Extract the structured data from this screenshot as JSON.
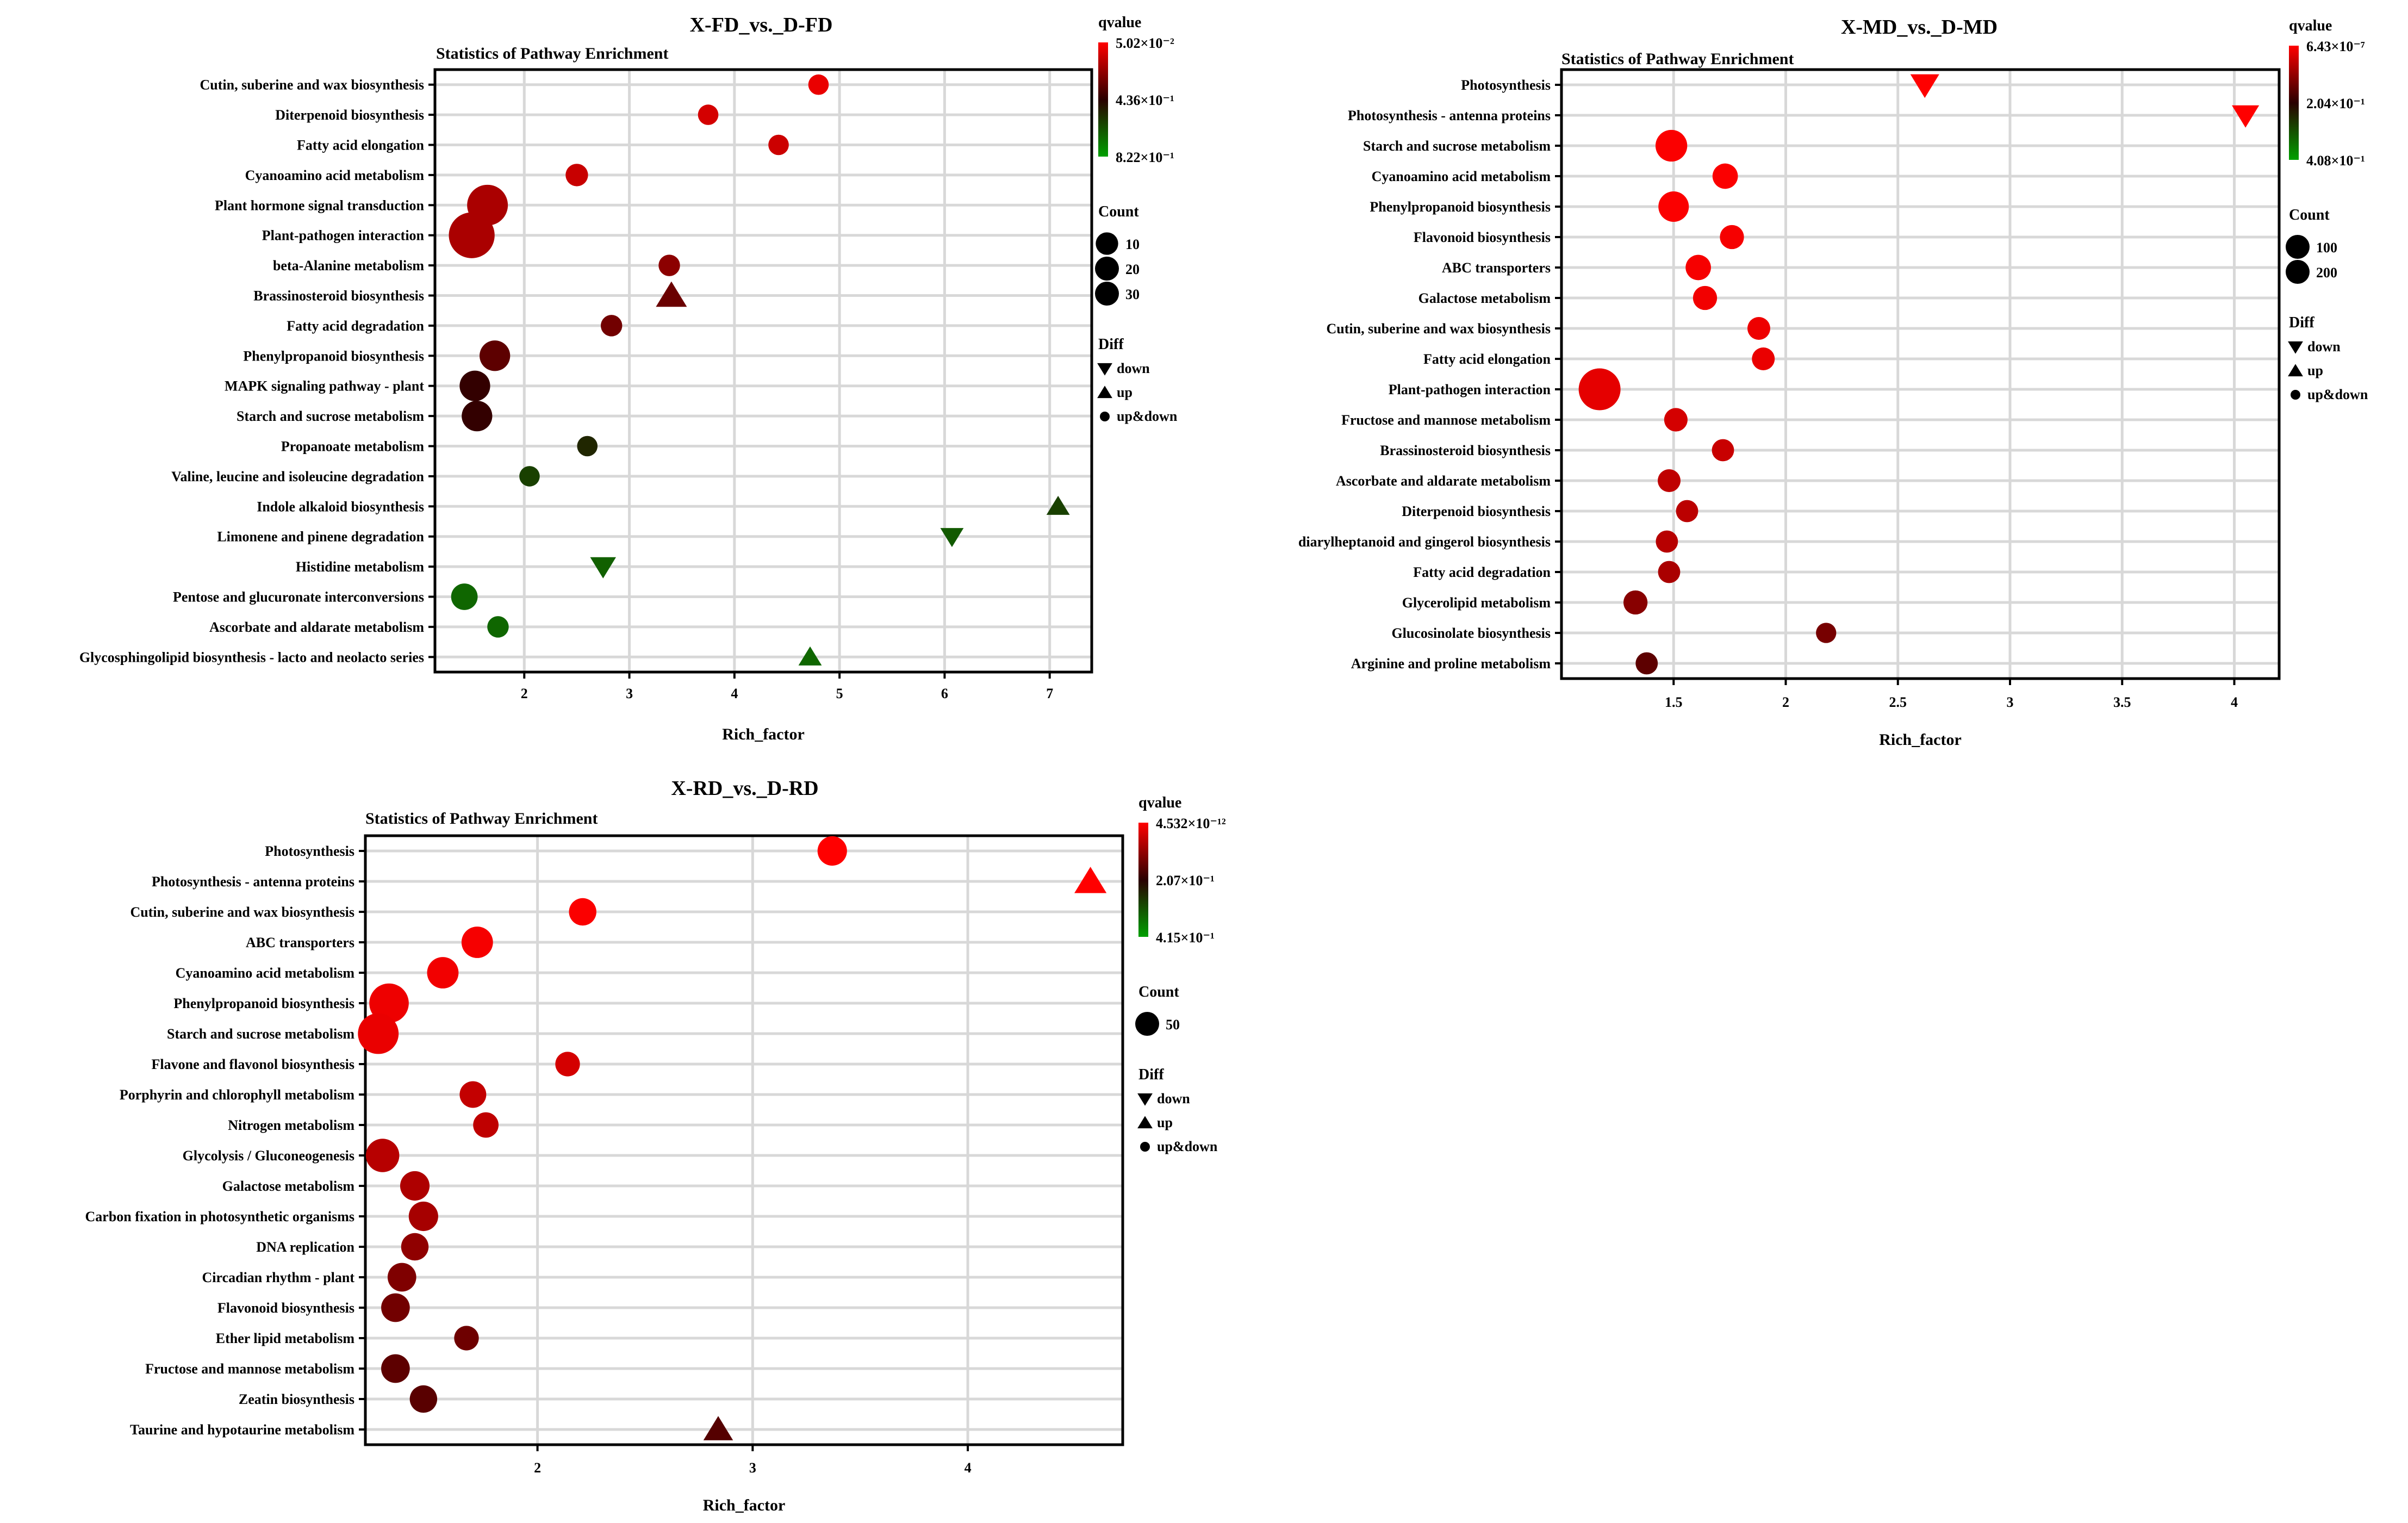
{
  "chart_data": [
    {
      "type": "scatter",
      "title": "X-FD_vs._D-FD",
      "subtitle": "Statistics of Pathway Enrichment",
      "xlabel": "Rich_factor",
      "xlim": [
        1.15,
        7.4
      ],
      "xticks": [
        2,
        3,
        4,
        5,
        6,
        7
      ],
      "legend_qvalue": {
        "title": "qvalue",
        "labels": [
          "5.02×10⁻²",
          "4.36×10⁻¹",
          "8.22×10⁻¹"
        ]
      },
      "legend_count": {
        "title": "Count",
        "values": [
          10,
          20,
          30
        ],
        "labels": [
          "10",
          "20",
          "30"
        ]
      },
      "legend_diff": {
        "title": "Diff",
        "labels": [
          "down",
          "up",
          "up&down"
        ]
      },
      "count_range": [
        5,
        35
      ],
      "points": [
        {
          "pathway": "Cutin, suberine and wax biosynthesis",
          "x": 4.8,
          "count": 8,
          "q": 0.05,
          "diff": "up&down"
        },
        {
          "pathway": "Diterpenoid biosynthesis",
          "x": 3.75,
          "count": 8,
          "q": 0.1,
          "diff": "up&down"
        },
        {
          "pathway": "Fatty acid elongation",
          "x": 4.42,
          "count": 8,
          "q": 0.12,
          "diff": "up&down"
        },
        {
          "pathway": "Cyanoamino acid metabolism",
          "x": 2.5,
          "count": 10,
          "q": 0.13,
          "diff": "up&down"
        },
        {
          "pathway": "Plant hormone signal transduction",
          "x": 1.65,
          "count": 28,
          "q": 0.2,
          "diff": "up&down"
        },
        {
          "pathway": "Plant-pathogen interaction",
          "x": 1.5,
          "count": 33,
          "q": 0.2,
          "diff": "up&down"
        },
        {
          "pathway": "beta-Alanine metabolism",
          "x": 3.38,
          "count": 9,
          "q": 0.27,
          "diff": "up&down"
        },
        {
          "pathway": "Brassinosteroid biosynthesis",
          "x": 3.4,
          "count": 12,
          "q": 0.35,
          "diff": "up"
        },
        {
          "pathway": "Fatty acid degradation",
          "x": 2.83,
          "count": 9,
          "q": 0.33,
          "diff": "up&down"
        },
        {
          "pathway": "Phenylpropanoid biosynthesis",
          "x": 1.72,
          "count": 18,
          "q": 0.38,
          "diff": "up&down"
        },
        {
          "pathway": "MAPK signaling pathway - plant",
          "x": 1.53,
          "count": 18,
          "q": 0.48,
          "diff": "up&down"
        },
        {
          "pathway": "Starch and sucrose metabolism",
          "x": 1.55,
          "count": 18,
          "q": 0.48,
          "diff": "up&down"
        },
        {
          "pathway": "Propanoate metabolism",
          "x": 2.6,
          "count": 8,
          "q": 0.62,
          "diff": "up&down"
        },
        {
          "pathway": "Valine, leucine and isoleucine degradation",
          "x": 2.05,
          "count": 8,
          "q": 0.7,
          "diff": "up&down"
        },
        {
          "pathway": "Indole alkaloid biosynthesis",
          "x": 7.08,
          "count": 6,
          "q": 0.7,
          "diff": "up"
        },
        {
          "pathway": "Limonene and pinene degradation",
          "x": 6.07,
          "count": 6,
          "q": 0.78,
          "diff": "down"
        },
        {
          "pathway": "Histidine metabolism",
          "x": 2.75,
          "count": 8,
          "q": 0.8,
          "diff": "down"
        },
        {
          "pathway": "Pentose and glucuronate interconversions",
          "x": 1.43,
          "count": 14,
          "q": 0.82,
          "diff": "up&down"
        },
        {
          "pathway": "Ascorbate and aldarate metabolism",
          "x": 1.75,
          "count": 9,
          "q": 0.82,
          "diff": "up&down"
        },
        {
          "pathway": "Glycosphingolipid biosynthesis - lacto and neolacto series",
          "x": 4.72,
          "count": 6,
          "q": 0.82,
          "diff": "up"
        }
      ]
    },
    {
      "type": "scatter",
      "title": "X-MD_vs._D-MD",
      "subtitle": "Statistics of Pathway Enrichment",
      "xlabel": "Rich_factor",
      "xlim": [
        1.0,
        4.2
      ],
      "xticks": [
        1.5,
        2,
        2.5,
        3,
        3.5,
        4
      ],
      "legend_qvalue": {
        "title": "qvalue",
        "labels": [
          "6.43×10⁻⁷",
          "2.04×10⁻¹",
          "4.08×10⁻¹"
        ]
      },
      "legend_count": {
        "title": "Count",
        "values": [
          100,
          200
        ],
        "labels": [
          "100",
          "200"
        ]
      },
      "legend_diff": {
        "title": "Diff",
        "labels": [
          "down",
          "up",
          "up&down"
        ]
      },
      "count_range": [
        20,
        260
      ],
      "points": [
        {
          "pathway": "Photosynthesis",
          "x": 2.62,
          "count": 80,
          "q": 0.0,
          "diff": "down"
        },
        {
          "pathway": "Photosynthesis - antenna proteins",
          "x": 4.05,
          "count": 70,
          "q": 0.0,
          "diff": "down"
        },
        {
          "pathway": "Starch and sucrose metabolism",
          "x": 1.49,
          "count": 150,
          "q": 0.01,
          "diff": "up&down"
        },
        {
          "pathway": "Cyanoamino acid metabolism",
          "x": 1.73,
          "count": 100,
          "q": 0.01,
          "diff": "up&down"
        },
        {
          "pathway": "Phenylpropanoid biosynthesis",
          "x": 1.5,
          "count": 140,
          "q": 0.01,
          "diff": "up&down"
        },
        {
          "pathway": "Flavonoid biosynthesis",
          "x": 1.76,
          "count": 90,
          "q": 0.02,
          "diff": "up&down"
        },
        {
          "pathway": "ABC transporters",
          "x": 1.61,
          "count": 100,
          "q": 0.02,
          "diff": "up&down"
        },
        {
          "pathway": "Galactose metabolism",
          "x": 1.64,
          "count": 90,
          "q": 0.03,
          "diff": "up&down"
        },
        {
          "pathway": "Cutin, suberine and wax biosynthesis",
          "x": 1.88,
          "count": 80,
          "q": 0.04,
          "diff": "up&down"
        },
        {
          "pathway": "Fatty acid elongation",
          "x": 1.9,
          "count": 80,
          "q": 0.05,
          "diff": "up&down"
        },
        {
          "pathway": "Plant-pathogen interaction",
          "x": 1.17,
          "count": 230,
          "q": 0.06,
          "diff": "up&down"
        },
        {
          "pathway": "Fructose and mannose metabolism",
          "x": 1.51,
          "count": 85,
          "q": 0.1,
          "diff": "up&down"
        },
        {
          "pathway": "Brassinosteroid biosynthesis",
          "x": 1.72,
          "count": 75,
          "q": 0.13,
          "diff": "up&down"
        },
        {
          "pathway": "Ascorbate and aldarate metabolism",
          "x": 1.48,
          "count": 80,
          "q": 0.15,
          "diff": "up&down"
        },
        {
          "pathway": "Diterpenoid biosynthesis",
          "x": 1.56,
          "count": 75,
          "q": 0.16,
          "diff": "up&down"
        },
        {
          "pathway": "diarylheptanoid and gingerol biosynthesis",
          "x": 1.47,
          "count": 75,
          "q": 0.17,
          "diff": "up&down"
        },
        {
          "pathway": "Fatty acid degradation",
          "x": 1.48,
          "count": 75,
          "q": 0.2,
          "diff": "up&down"
        },
        {
          "pathway": "Glycerolipid metabolism",
          "x": 1.33,
          "count": 90,
          "q": 0.28,
          "diff": "up&down"
        },
        {
          "pathway": "Glucosinolate biosynthesis",
          "x": 2.18,
          "count": 60,
          "q": 0.32,
          "diff": "up&down"
        },
        {
          "pathway": "Arginine and proline metabolism",
          "x": 1.38,
          "count": 75,
          "q": 0.38,
          "diff": "up&down"
        }
      ]
    },
    {
      "type": "scatter",
      "title": "X-RD_vs._D-RD",
      "subtitle": "Statistics of Pathway Enrichment",
      "xlabel": "Rich_factor",
      "xlim": [
        1.2,
        4.72
      ],
      "xticks": [
        2,
        3,
        4
      ],
      "legend_qvalue": {
        "title": "qvalue",
        "labels": [
          "4.532×10⁻¹²",
          "2.07×10⁻¹",
          "4.15×10⁻¹"
        ]
      },
      "legend_count": {
        "title": "Count",
        "values": [
          50
        ],
        "labels": [
          "50"
        ]
      },
      "legend_diff": {
        "title": "Diff",
        "labels": [
          "down",
          "up",
          "up&down"
        ]
      },
      "count_range": [
        10,
        75
      ],
      "points": [
        {
          "pathway": "Photosynthesis",
          "x": 3.37,
          "count": 40,
          "q": 0.0,
          "diff": "up&down"
        },
        {
          "pathway": "Photosynthesis - antenna proteins",
          "x": 4.57,
          "count": 30,
          "q": 0.0,
          "diff": "up"
        },
        {
          "pathway": "Cutin, suberine and wax biosynthesis",
          "x": 2.21,
          "count": 35,
          "q": 0.01,
          "diff": "up&down"
        },
        {
          "pathway": "ABC transporters",
          "x": 1.72,
          "count": 45,
          "q": 0.02,
          "diff": "up&down"
        },
        {
          "pathway": "Cyanoamino acid metabolism",
          "x": 1.56,
          "count": 45,
          "q": 0.03,
          "diff": "up&down"
        },
        {
          "pathway": "Phenylpropanoid biosynthesis",
          "x": 1.31,
          "count": 65,
          "q": 0.04,
          "diff": "up&down"
        },
        {
          "pathway": "Starch and sucrose metabolism",
          "x": 1.26,
          "count": 68,
          "q": 0.05,
          "diff": "up&down"
        },
        {
          "pathway": "Flavone and flavonol biosynthesis",
          "x": 2.14,
          "count": 28,
          "q": 0.1,
          "diff": "up&down"
        },
        {
          "pathway": "Porphyrin and chlorophyll metabolism",
          "x": 1.7,
          "count": 33,
          "q": 0.14,
          "diff": "up&down"
        },
        {
          "pathway": "Nitrogen metabolism",
          "x": 1.76,
          "count": 30,
          "q": 0.15,
          "diff": "up&down"
        },
        {
          "pathway": "Glycolysis / Gluconeogenesis",
          "x": 1.28,
          "count": 50,
          "q": 0.17,
          "diff": "up&down"
        },
        {
          "pathway": "Galactose metabolism",
          "x": 1.43,
          "count": 40,
          "q": 0.19,
          "diff": "up&down"
        },
        {
          "pathway": "Carbon fixation in photosynthetic organisms",
          "x": 1.47,
          "count": 40,
          "q": 0.21,
          "diff": "up&down"
        },
        {
          "pathway": "DNA replication",
          "x": 1.43,
          "count": 35,
          "q": 0.26,
          "diff": "up&down"
        },
        {
          "pathway": "Circadian rhythm - plant",
          "x": 1.37,
          "count": 38,
          "q": 0.3,
          "diff": "up&down"
        },
        {
          "pathway": "Flavonoid biosynthesis",
          "x": 1.34,
          "count": 38,
          "q": 0.33,
          "diff": "up&down"
        },
        {
          "pathway": "Ether lipid metabolism",
          "x": 1.67,
          "count": 28,
          "q": 0.34,
          "diff": "up&down"
        },
        {
          "pathway": "Fructose and mannose metabolism",
          "x": 1.34,
          "count": 38,
          "q": 0.38,
          "diff": "up&down"
        },
        {
          "pathway": "Zeatin biosynthesis",
          "x": 1.47,
          "count": 35,
          "q": 0.39,
          "diff": "up&down"
        },
        {
          "pathway": "Taurine and hypotaurine metabolism",
          "x": 2.84,
          "count": 25,
          "q": 0.4,
          "diff": "up"
        }
      ]
    }
  ],
  "colors": {
    "high": "#ff0000",
    "mid": "#2a0000",
    "low": "#00a000",
    "grid": "#d8d8d8",
    "axis": "#000000"
  }
}
